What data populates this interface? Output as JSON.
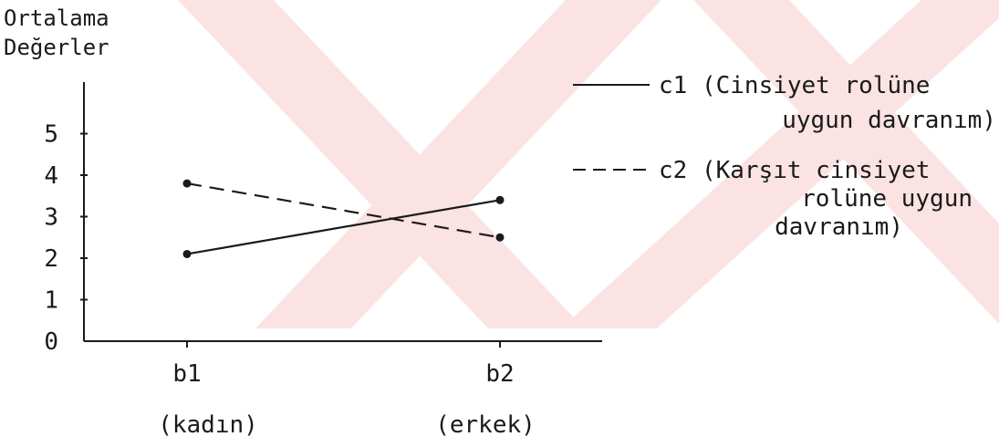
{
  "chart_data": {
    "type": "line",
    "title": "",
    "ylabel": [
      "Ortalama",
      "Değerler"
    ],
    "xlabel": "",
    "categories": [
      "b1",
      "b2"
    ],
    "category_sublabels": [
      "(kadın)",
      "(erkek)"
    ],
    "yticks": [
      "0",
      "1",
      "2",
      "3",
      "4",
      "5"
    ],
    "ylim": [
      0,
      6
    ],
    "grid": false,
    "legend_position": "top-right",
    "series": [
      {
        "name": "c1",
        "legend_lines": [
          "c1 (Cinsiyet rolüne",
          "uygun davranım)"
        ],
        "values": [
          2.1,
          3.4
        ],
        "dash": "solid",
        "color": "#1a1a1a"
      },
      {
        "name": "c2",
        "legend_lines": [
          "c2 (Karşıt cinsiyet",
          "rolüne uygun",
          "davranım)"
        ],
        "values": [
          3.8,
          2.5
        ],
        "dash": "dashed",
        "color": "#1a1a1a"
      }
    ]
  },
  "colors": {
    "watermark": "#fbe3e3",
    "ink": "#1a1a1a"
  }
}
